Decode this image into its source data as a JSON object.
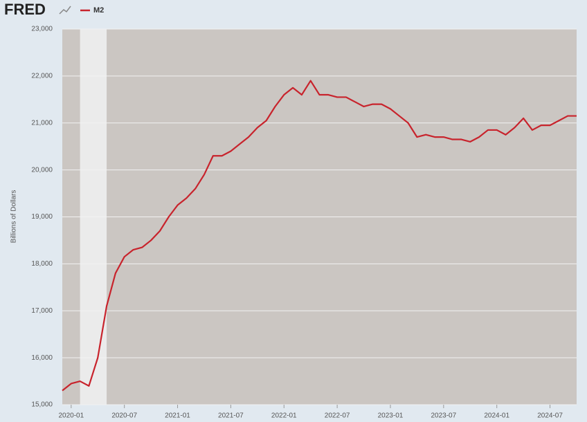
{
  "chart_data": {
    "type": "line",
    "logo": "FRED",
    "ylabel": "Billions of Dollars",
    "x": [
      "2019-12",
      "2020-01",
      "2020-02",
      "2020-03",
      "2020-04",
      "2020-05",
      "2020-06",
      "2020-07",
      "2020-08",
      "2020-09",
      "2020-10",
      "2020-11",
      "2020-12",
      "2021-01",
      "2021-02",
      "2021-03",
      "2021-04",
      "2021-05",
      "2021-06",
      "2021-07",
      "2021-08",
      "2021-09",
      "2021-10",
      "2021-11",
      "2021-12",
      "2022-01",
      "2022-02",
      "2022-03",
      "2022-04",
      "2022-05",
      "2022-06",
      "2022-07",
      "2022-08",
      "2022-09",
      "2022-10",
      "2022-11",
      "2022-12",
      "2023-01",
      "2023-02",
      "2023-03",
      "2023-04",
      "2023-05",
      "2023-06",
      "2023-07",
      "2023-08",
      "2023-09",
      "2023-10",
      "2023-11",
      "2023-12",
      "2024-01",
      "2024-02",
      "2024-03",
      "2024-04",
      "2024-05",
      "2024-06",
      "2024-07",
      "2024-08",
      "2024-09",
      "2024-10"
    ],
    "series": [
      {
        "name": "M2",
        "color": "#c8232c",
        "values": [
          15300,
          15450,
          15500,
          15400,
          16000,
          17100,
          17800,
          18150,
          18300,
          18350,
          18500,
          18700,
          19000,
          19250,
          19400,
          19600,
          19900,
          20300,
          20300,
          20400,
          20550,
          20700,
          20900,
          21050,
          21350,
          21600,
          21750,
          21600,
          21900,
          21600,
          21600,
          21550,
          21550,
          21450,
          21350,
          21400,
          21400,
          21300,
          21150,
          21000,
          20700,
          20750,
          20700,
          20700,
          20650,
          20650,
          20600,
          20700,
          20850,
          20850,
          20750,
          20900,
          21100,
          20850,
          20950,
          20950,
          21050,
          21150,
          21150
        ]
      }
    ],
    "xlim": [
      "2019-12",
      "2024-10"
    ],
    "xticks": [
      "2020-01",
      "2020-07",
      "2021-01",
      "2021-07",
      "2022-01",
      "2022-07",
      "2023-01",
      "2023-07",
      "2024-01",
      "2024-07"
    ],
    "ylim": [
      15000,
      23000
    ],
    "yticks": [
      {
        "value": 15000,
        "label": "15,000"
      },
      {
        "value": 16000,
        "label": "16,000"
      },
      {
        "value": 17000,
        "label": "17,000"
      },
      {
        "value": 18000,
        "label": "18,000"
      },
      {
        "value": 19000,
        "label": "19,000"
      },
      {
        "value": 20000,
        "label": "20,000"
      },
      {
        "value": 21000,
        "label": "21,000"
      },
      {
        "value": 22000,
        "label": "22,000"
      },
      {
        "value": 23000,
        "label": "23,000"
      }
    ],
    "shaded_periods": [
      {
        "start": "2020-02",
        "end": "2020-04"
      }
    ],
    "grid": true
  }
}
